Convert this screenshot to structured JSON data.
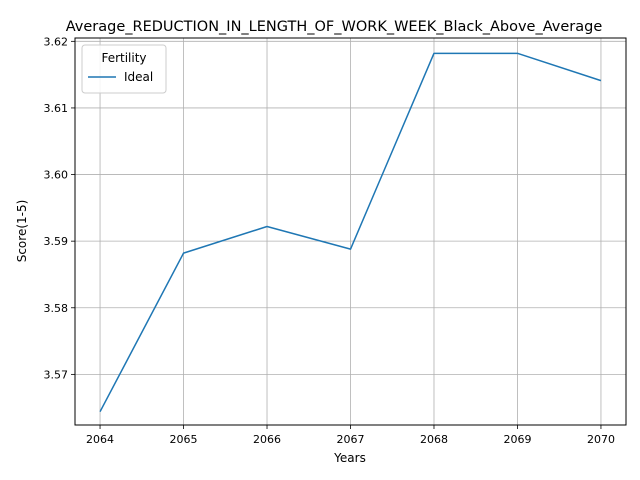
{
  "chart_data": {
    "type": "line",
    "title": "Average_REDUCTION_IN_LENGTH_OF_WORK_WEEK_Black_Above_Average",
    "xlabel": "Years",
    "ylabel": "Score(1-5)",
    "x": [
      2064,
      2065,
      2066,
      2067,
      2068,
      2069,
      2070
    ],
    "x_tick_labels": [
      "2064",
      "2065",
      "2066",
      "2067",
      "2068",
      "2069",
      "2070"
    ],
    "y_ticks": [
      3.57,
      3.58,
      3.59,
      3.6,
      3.61,
      3.62
    ],
    "y_tick_labels": [
      "3.57",
      "3.58",
      "3.59",
      "3.60",
      "3.61",
      "3.62"
    ],
    "ylim": [
      3.5624,
      3.6205
    ],
    "xlim": [
      2063.7,
      2070.3
    ],
    "grid": true,
    "legend": {
      "title": "Fertility",
      "placement": "upper-left"
    },
    "series": [
      {
        "name": "Ideal",
        "color": "#1f77b4",
        "values": [
          3.5644,
          3.5882,
          3.5922,
          3.5888,
          3.6182,
          3.6182,
          3.6141
        ]
      }
    ]
  }
}
